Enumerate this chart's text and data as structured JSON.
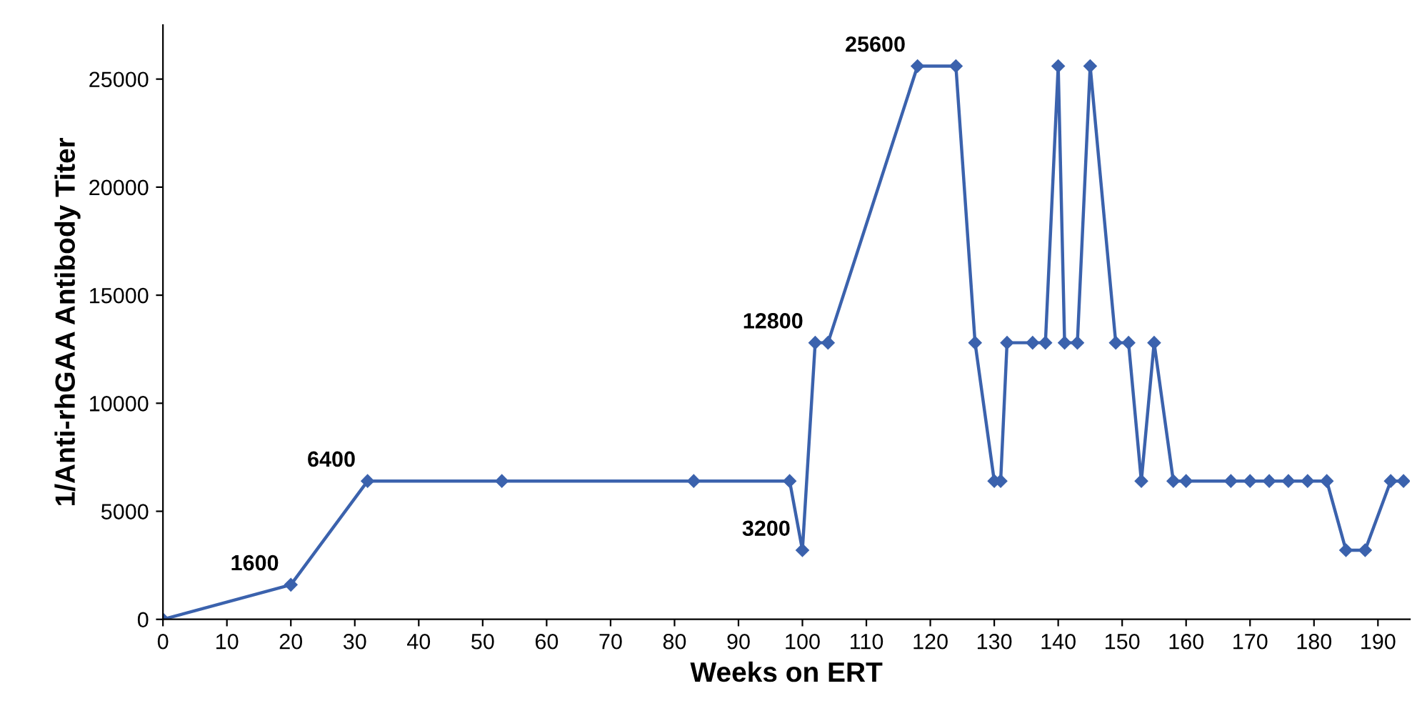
{
  "chart_data": {
    "type": "line",
    "xlabel": "Weeks on ERT",
    "ylabel": "1/Anti-rhGAA Antibody Titer",
    "x": [
      0,
      20,
      32,
      53,
      83,
      98,
      100,
      102,
      104,
      118,
      124,
      127,
      130,
      131,
      132,
      136,
      138,
      140,
      141,
      143,
      145,
      149,
      151,
      153,
      155,
      158,
      160,
      167,
      170,
      173,
      176,
      179,
      182,
      185,
      188,
      192,
      194
    ],
    "series": [
      {
        "color": "#3b62ad",
        "values": [
          0,
          1600,
          6400,
          6400,
          6400,
          6400,
          3200,
          12800,
          12800,
          25600,
          25600,
          12800,
          6400,
          6400,
          12800,
          12800,
          12800,
          25600,
          12800,
          12800,
          25600,
          12800,
          12800,
          6400,
          12800,
          6400,
          6400,
          6400,
          6400,
          6400,
          6400,
          6400,
          6400,
          3200,
          3200,
          6400,
          6400
        ]
      }
    ],
    "marker": "diamond",
    "line_style": "solid",
    "grid": false,
    "legend": false,
    "xlim": [
      0,
      195
    ],
    "xticks": [
      0,
      10,
      20,
      30,
      40,
      50,
      60,
      70,
      80,
      90,
      100,
      110,
      120,
      130,
      140,
      150,
      160,
      170,
      180,
      190
    ],
    "ylim": [
      0,
      27500
    ],
    "yticks": [
      0,
      5000,
      10000,
      15000,
      20000,
      25000
    ],
    "annotations": [
      {
        "text": "1600",
        "x": 20,
        "y": 1600
      },
      {
        "text": "6400",
        "x": 32,
        "y": 6400
      },
      {
        "text": "3200",
        "x": 100,
        "y": 3200
      },
      {
        "text": "12800",
        "x": 102,
        "y": 12800
      },
      {
        "text": "25600",
        "x": 118,
        "y": 25600
      }
    ]
  }
}
